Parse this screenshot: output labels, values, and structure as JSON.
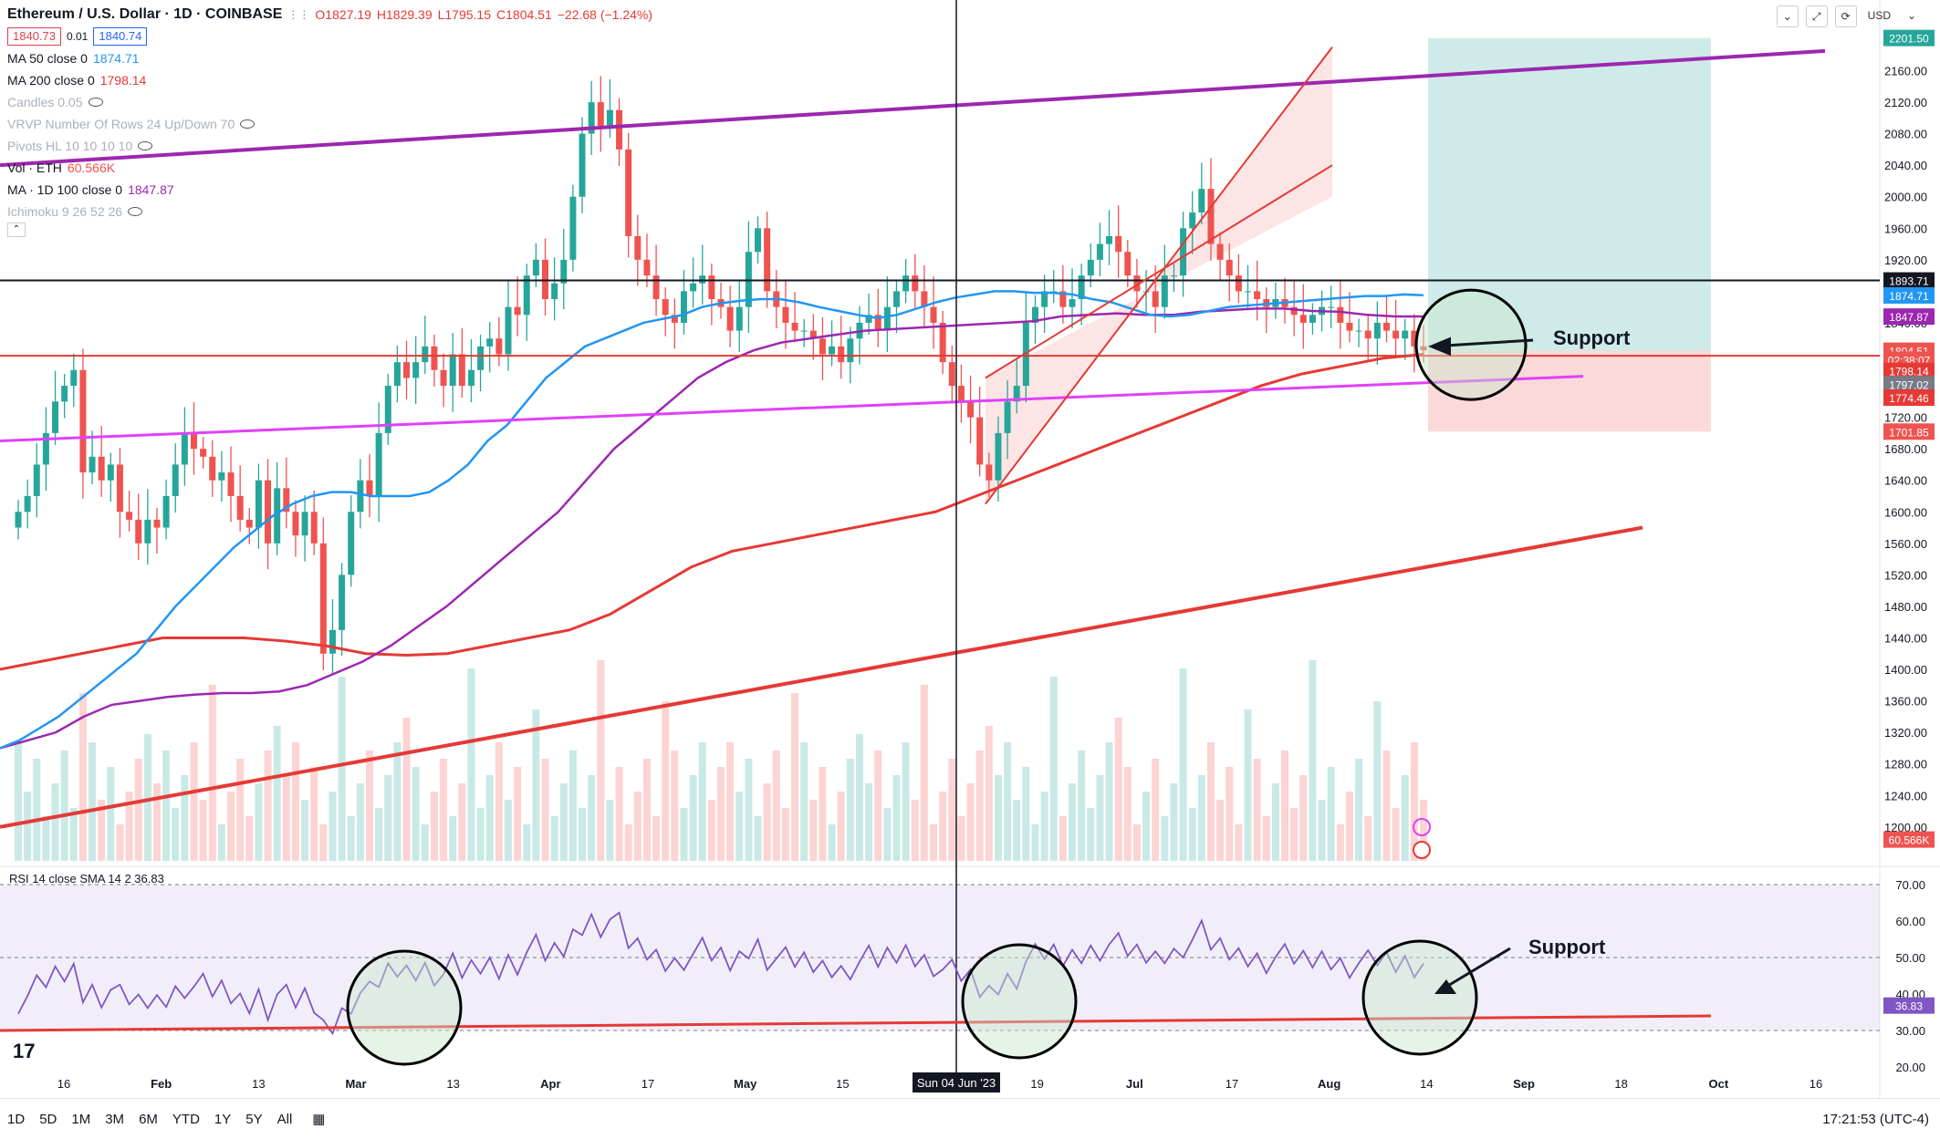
{
  "header": {
    "symbol": "Ethereum / U.S. Dollar · 1D · COINBASE",
    "ohlc": {
      "o": "O1827.19",
      "h": "H1829.39",
      "l": "L1795.15",
      "c": "C1804.51",
      "chg": "−22.68 (−1.24%)"
    },
    "bid": "1840.73",
    "spread": "0.01",
    "ask": "1840.74",
    "currency": "USD"
  },
  "indicators": [
    {
      "label": "MA 50 close 0",
      "value": "1874.71",
      "color": "#2196f3"
    },
    {
      "label": "MA 200 close 0",
      "value": "1798.14",
      "color": "#e53935"
    },
    {
      "label": "Candles 0.05",
      "value": "",
      "faded": true
    },
    {
      "label": "VRVP Number Of Rows 24 Up/Down 70",
      "value": "",
      "faded": true
    },
    {
      "label": "Pivots HL 10 10 10 10",
      "value": "",
      "faded": true
    },
    {
      "label": "Vol · ETH",
      "value": "60.566K",
      "color": "#ef5350"
    },
    {
      "label": "MA · 1D 100 close 0",
      "value": "1847.87",
      "color": "#9c27b0"
    },
    {
      "label": "Ichimoku 9 26 52 26",
      "value": "",
      "faded": true
    }
  ],
  "rsi_label": "RSI 14 close SMA 14 2  36.83",
  "annotations": {
    "support_main": "Support",
    "support_rsi": "Support"
  },
  "timeframes": [
    "1D",
    "5D",
    "1M",
    "3M",
    "6M",
    "YTD",
    "1Y",
    "5Y",
    "All"
  ],
  "clock": "17:21:53 (UTC-4)",
  "crosshair_date": "Sun 04 Jun '23",
  "colors": {
    "up": "#26a69a",
    "down": "#ef5350",
    "ma50": "#2196f3",
    "ma200": "#e53935",
    "ma100": "#9c27b0"
  },
  "chart_data": {
    "type": "candlestick",
    "price_axis": {
      "ticks": [
        1200,
        1240,
        1280,
        1320,
        1360,
        1400,
        1440,
        1480,
        1520,
        1560,
        1600,
        1640,
        1680,
        1720,
        1760,
        1800,
        1840,
        1880,
        1920,
        1960,
        2000,
        2040,
        2080,
        2120,
        2160
      ],
      "range": [
        1150,
        2215
      ]
    },
    "time_axis": {
      "labels": [
        "16",
        "Feb",
        "13",
        "Mar",
        "13",
        "Apr",
        "17",
        "May",
        "15",
        "Jun",
        "19",
        "Jul",
        "17",
        "Aug",
        "14",
        "Sep",
        "18",
        "Oct",
        "16"
      ]
    },
    "price_labels": [
      {
        "value": "2201.50",
        "price": 2201.5,
        "color": "#26a69a"
      },
      {
        "value": "1893.71",
        "price": 1893.71,
        "color": "#131722"
      },
      {
        "value": "1874.71",
        "price": 1874.71,
        "color": "#2196f3"
      },
      {
        "value": "1847.87",
        "price": 1847.87,
        "color": "#9c27b0"
      },
      {
        "value": "1804.51",
        "price": 1804.51,
        "color": "#ef5350"
      },
      {
        "value": "02:38:07",
        "price": 1793,
        "color": "#ef5350"
      },
      {
        "value": "1798.14",
        "price": 1779,
        "color": "#e53935"
      },
      {
        "value": "1797.02",
        "price": 1762,
        "color": "#787b86"
      },
      {
        "value": "1774.46",
        "price": 1745,
        "color": "#e53935"
      },
      {
        "value": "1701.85",
        "price": 1701.85,
        "color": "#ef5350"
      },
      {
        "value": "60.566K",
        "price": 1184,
        "color": "#ef5350"
      }
    ],
    "closes": [
      1600,
      1620,
      1660,
      1700,
      1740,
      1760,
      1780,
      1650,
      1670,
      1640,
      1660,
      1600,
      1590,
      1560,
      1590,
      1580,
      1620,
      1660,
      1700,
      1680,
      1670,
      1640,
      1650,
      1620,
      1590,
      1580,
      1640,
      1560,
      1630,
      1600,
      1570,
      1600,
      1560,
      1420,
      1450,
      1520,
      1600,
      1640,
      1620,
      1700,
      1760,
      1790,
      1770,
      1790,
      1810,
      1780,
      1760,
      1800,
      1760,
      1780,
      1810,
      1820,
      1800,
      1860,
      1850,
      1900,
      1920,
      1870,
      1890,
      1920,
      2000,
      2080,
      2120,
      2090,
      2110,
      2060,
      1950,
      1920,
      1900,
      1870,
      1850,
      1840,
      1880,
      1890,
      1900,
      1870,
      1860,
      1830,
      1860,
      1930,
      1960,
      1880,
      1860,
      1840,
      1830,
      1830,
      1820,
      1800,
      1810,
      1790,
      1820,
      1840,
      1850,
      1830,
      1860,
      1880,
      1900,
      1880,
      1860,
      1840,
      1790,
      1760,
      1740,
      1720,
      1660,
      1640,
      1700,
      1740,
      1760,
      1840,
      1860,
      1880,
      1880,
      1860,
      1870,
      1900,
      1920,
      1940,
      1950,
      1930,
      1900,
      1880,
      1880,
      1860,
      1900,
      1900,
      1960,
      1980,
      2010,
      1940,
      1920,
      1900,
      1880,
      1880,
      1870,
      1860,
      1870,
      1860,
      1850,
      1840,
      1850,
      1860,
      1860,
      1840,
      1830,
      1830,
      1820,
      1840,
      1830,
      1820,
      1830,
      1810,
      1805
    ],
    "ma50": [
      1300,
      1310,
      1325,
      1340,
      1360,
      1380,
      1400,
      1420,
      1450,
      1480,
      1505,
      1530,
      1555,
      1575,
      1595,
      1610,
      1620,
      1625,
      1625,
      1620,
      1620,
      1620,
      1625,
      1640,
      1660,
      1690,
      1710,
      1740,
      1770,
      1790,
      1810,
      1820,
      1830,
      1840,
      1845,
      1850,
      1860,
      1865,
      1868,
      1870,
      1870,
      1866,
      1860,
      1855,
      1850,
      1846,
      1850,
      1858,
      1866,
      1872,
      1876,
      1880,
      1880,
      1878,
      1878,
      1876,
      1870,
      1866,
      1858,
      1850,
      1848,
      1850,
      1855,
      1860,
      1862,
      1864,
      1866,
      1868,
      1870,
      1872,
      1874,
      1874,
      1876,
      1875
    ],
    "ma100": [
      1300,
      1310,
      1320,
      1340,
      1355,
      1360,
      1365,
      1368,
      1370,
      1370,
      1372,
      1380,
      1395,
      1410,
      1430,
      1455,
      1480,
      1510,
      1540,
      1570,
      1600,
      1640,
      1680,
      1710,
      1740,
      1770,
      1790,
      1805,
      1815,
      1820,
      1825,
      1830,
      1832,
      1834,
      1836,
      1838,
      1840,
      1842,
      1848,
      1850,
      1852,
      1850,
      1850,
      1854,
      1856,
      1858,
      1858,
      1855,
      1854,
      1850,
      1848,
      1848
    ],
    "ma200": [
      1400,
      1410,
      1420,
      1430,
      1440,
      1440,
      1440,
      1436,
      1430,
      1420,
      1418,
      1420,
      1430,
      1440,
      1450,
      1470,
      1500,
      1530,
      1550,
      1560,
      1570,
      1580,
      1590,
      1600,
      1620,
      1640,
      1660,
      1680,
      1700,
      1720,
      1740,
      1760,
      1775,
      1785,
      1795,
      1800
    ],
    "rsi_axis": {
      "ticks": [
        20,
        30,
        40,
        50,
        60,
        70
      ]
    },
    "rsi_value": "36.83"
  }
}
